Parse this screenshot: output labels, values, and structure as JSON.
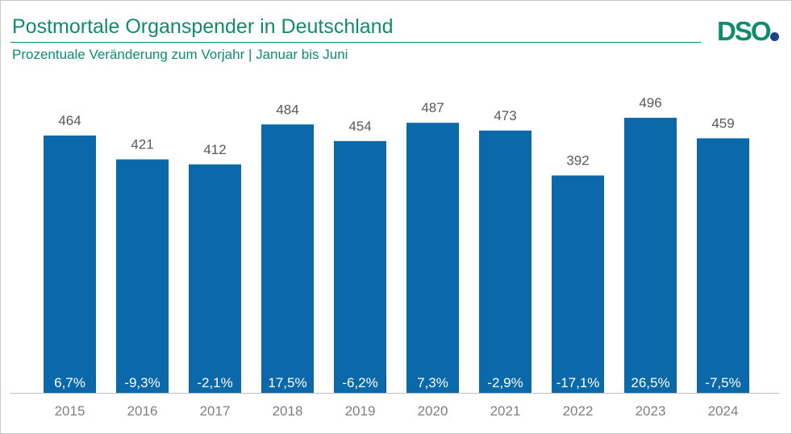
{
  "header": {
    "title": "Postmortale Organspender in Deutschland",
    "subtitle": "Prozentuale Veränderung zum Vorjahr | Januar bis Juni"
  },
  "logo": {
    "text": "DSO"
  },
  "colors": {
    "bar": "#0b69aa",
    "title": "#0f8c6e",
    "value_label": "#595959",
    "axis_label": "#7f7f7f",
    "logo_dot": "#1f3f8f"
  },
  "chart_data": {
    "type": "bar",
    "title": "Postmortale Organspender in Deutschland",
    "subtitle": "Prozentuale Veränderung zum Vorjahr | Januar bis Juni",
    "xlabel": "",
    "ylabel": "",
    "ylim": [
      0,
      550
    ],
    "grid": false,
    "categories": [
      "2015",
      "2016",
      "2017",
      "2018",
      "2019",
      "2020",
      "2021",
      "2022",
      "2023",
      "2024"
    ],
    "values": [
      464,
      421,
      412,
      484,
      454,
      487,
      473,
      392,
      496,
      459
    ],
    "changes": [
      "6,7%",
      "-9,3%",
      "-2,1%",
      "17,5%",
      "-6,2%",
      "7,3%",
      "-2,9%",
      "-17,1%",
      "26,5%",
      "-7,5%"
    ]
  }
}
